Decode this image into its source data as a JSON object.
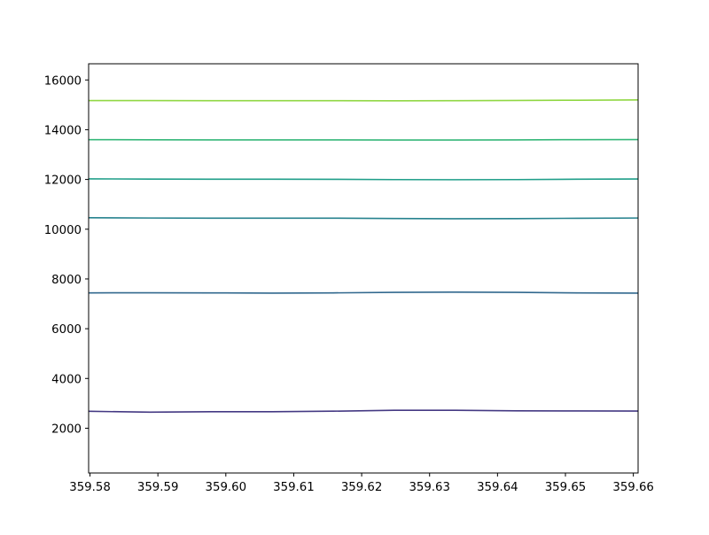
{
  "chart_data": {
    "type": "line",
    "title": "",
    "xlabel": "",
    "ylabel": "",
    "xlim": [
      359.5798,
      359.6607
    ],
    "ylim": [
      200,
      16650
    ],
    "grid": false,
    "legend": "none",
    "x_ticks": [
      359.58,
      359.59,
      359.6,
      359.61,
      359.62,
      359.63,
      359.64,
      359.65,
      359.66
    ],
    "x_tick_labels": [
      "359.58",
      "359.59",
      "359.60",
      "359.61",
      "359.62",
      "359.63",
      "359.64",
      "359.65",
      "359.66"
    ],
    "y_ticks": [
      2000,
      4000,
      6000,
      8000,
      10000,
      12000,
      14000,
      16000
    ],
    "y_tick_labels": [
      "2000",
      "4000",
      "6000",
      "8000",
      "10000",
      "12000",
      "14000",
      "16000"
    ],
    "x": [
      359.5798,
      359.5888,
      359.5978,
      359.6068,
      359.6158,
      359.6248,
      359.6338,
      359.6428,
      359.6518,
      359.6607
    ],
    "series": [
      {
        "color": "#443983",
        "values": [
          2680,
          2645,
          2665,
          2665,
          2685,
          2720,
          2720,
          2700,
          2695,
          2690
        ]
      },
      {
        "color": "#31688e",
        "values": [
          7440,
          7445,
          7440,
          7430,
          7440,
          7460,
          7470,
          7460,
          7440,
          7430
        ]
      },
      {
        "color": "#26828e",
        "values": [
          10460,
          10450,
          10445,
          10445,
          10445,
          10430,
          10420,
          10425,
          10440,
          10450
        ]
      },
      {
        "color": "#1f9e89",
        "values": [
          12025,
          12015,
          12010,
          12010,
          12005,
          11995,
          11990,
          11995,
          12010,
          12020
        ]
      },
      {
        "color": "#35b779",
        "values": [
          13600,
          13595,
          13590,
          13590,
          13590,
          13585,
          13585,
          13590,
          13600,
          13605
        ]
      },
      {
        "color": "#90d743",
        "values": [
          15170,
          15170,
          15165,
          15165,
          15165,
          15160,
          15165,
          15175,
          15185,
          15195
        ]
      }
    ]
  }
}
